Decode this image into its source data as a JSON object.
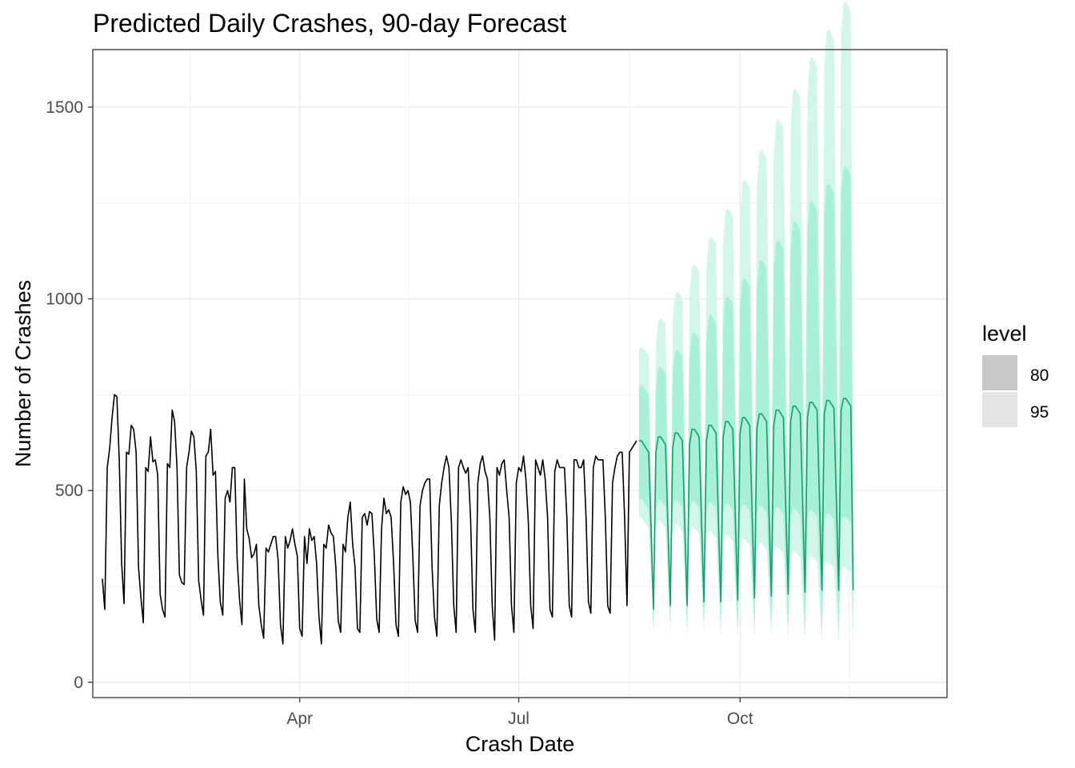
{
  "chart_data": {
    "type": "line",
    "title": "Predicted Daily Crashes, 90-day Forecast",
    "xlabel": "Crash Date",
    "ylabel": "Number of Crashes",
    "x_range": [
      "2020-01-06",
      "2020-12-26"
    ],
    "ylim": [
      -40,
      1650
    ],
    "y_ticks": [
      0,
      500,
      1000,
      1500
    ],
    "x_ticks": [
      {
        "date": "2020-04-01",
        "label": "Apr"
      },
      {
        "date": "2020-07-01",
        "label": "Jul"
      },
      {
        "date": "2020-10-01",
        "label": "Oct"
      }
    ],
    "grid": true,
    "legend": {
      "title": "level",
      "position": "right",
      "entries": [
        {
          "label": "80",
          "color": "#c8c8c8"
        },
        {
          "label": "95",
          "color": "#e3e3e3"
        }
      ]
    },
    "colors": {
      "actual": "#000000",
      "forecast": "#1a9e68",
      "band80": "#a8f0d8",
      "band95": "#d3f6ec"
    },
    "series": [
      {
        "kind": "actual",
        "start_date": "2020-01-10",
        "values": [
          270,
          190,
          560,
          610,
          690,
          750,
          745,
          580,
          310,
          205,
          600,
          595,
          670,
          660,
          600,
          300,
          220,
          155,
          560,
          550,
          640,
          575,
          580,
          540,
          230,
          190,
          170,
          570,
          560,
          710,
          680,
          560,
          280,
          260,
          255,
          560,
          600,
          655,
          640,
          550,
          265,
          215,
          175,
          590,
          600,
          660,
          540,
          550,
          330,
          210,
          175,
          480,
          500,
          470,
          560,
          560,
          320,
          215,
          150,
          530,
          400,
          375,
          325,
          335,
          360,
          200,
          150,
          115,
          350,
          340,
          360,
          380,
          380,
          320,
          150,
          100,
          380,
          350,
          370,
          400,
          360,
          330,
          140,
          120,
          380,
          310,
          400,
          370,
          380,
          310,
          170,
          100,
          360,
          350,
          410,
          390,
          380,
          300,
          160,
          130,
          360,
          340,
          430,
          470,
          360,
          300,
          140,
          130,
          430,
          440,
          410,
          445,
          440,
          330,
          165,
          130,
          400,
          480,
          440,
          450,
          430,
          310,
          150,
          120,
          470,
          510,
          490,
          500,
          470,
          330,
          160,
          130,
          460,
          500,
          520,
          530,
          530,
          300,
          170,
          120,
          460,
          520,
          560,
          590,
          560,
          420,
          200,
          130,
          560,
          580,
          560,
          545,
          560,
          430,
          190,
          130,
          520,
          570,
          590,
          550,
          530,
          430,
          200,
          110,
          560,
          540,
          570,
          580,
          500,
          430,
          200,
          130,
          520,
          560,
          550,
          590,
          530,
          420,
          200,
          140,
          580,
          560,
          540,
          580,
          530,
          430,
          190,
          170,
          550,
          580,
          560,
          560,
          560,
          430,
          200,
          170,
          580,
          580,
          560,
          560,
          580,
          430,
          210,
          180,
          560,
          590,
          580,
          580,
          580,
          430,
          200,
          180,
          520,
          560,
          590,
          600,
          600,
          430,
          200,
          600,
          610,
          620,
          630
        ]
      },
      {
        "kind": "forecast",
        "start_date": "2020-08-20",
        "values": [
          630,
          630,
          620,
          610,
          600,
          400,
          190,
          600,
          640,
          640,
          630,
          620,
          410,
          200,
          610,
          650,
          650,
          640,
          630,
          410,
          200,
          620,
          660,
          660,
          650,
          640,
          420,
          210,
          630,
          670,
          670,
          660,
          650,
          420,
          210,
          640,
          680,
          680,
          670,
          660,
          430,
          215,
          650,
          690,
          690,
          680,
          670,
          440,
          220,
          660,
          700,
          700,
          690,
          680,
          440,
          225,
          670,
          710,
          710,
          700,
          690,
          450,
          230,
          680,
          720,
          720,
          710,
          700,
          460,
          235,
          690,
          730,
          730,
          720,
          710,
          470,
          240,
          700,
          735,
          735,
          725,
          715,
          475,
          240,
          710,
          740,
          740,
          730,
          720,
          240
        ]
      }
    ],
    "bands": [
      {
        "level": "80",
        "lower_start": 480,
        "lower_end": 360,
        "upper_start": 780,
        "upper_end": 1180
      },
      {
        "level": "95",
        "lower_start": 430,
        "lower_end": 240,
        "upper_start": 880,
        "upper_end": 1570
      }
    ]
  }
}
